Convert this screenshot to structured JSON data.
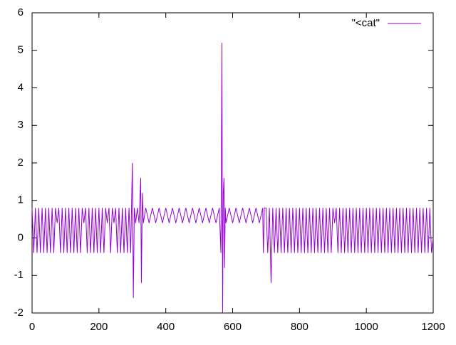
{
  "chart_data": {
    "type": "line",
    "x": [
      0,
      5,
      10,
      15,
      20,
      25,
      30,
      35,
      40,
      45,
      50,
      55,
      60,
      65,
      70,
      75,
      80,
      85,
      90,
      95,
      100,
      105,
      110,
      115,
      120,
      125,
      130,
      135,
      140,
      145,
      150,
      155,
      160,
      165,
      170,
      175,
      180,
      185,
      190,
      195,
      200,
      205,
      210,
      215,
      220,
      225,
      230,
      235,
      240,
      245,
      250,
      255,
      260,
      265,
      270,
      275,
      280,
      285,
      290,
      295,
      300,
      303,
      306,
      310,
      315,
      320,
      325,
      327,
      330,
      333,
      340,
      350,
      360,
      370,
      380,
      390,
      400,
      410,
      420,
      430,
      440,
      450,
      460,
      470,
      480,
      490,
      500,
      510,
      520,
      530,
      540,
      550,
      560,
      565,
      568,
      570,
      572,
      574,
      576,
      578,
      580,
      590,
      600,
      610,
      620,
      630,
      640,
      650,
      660,
      670,
      680,
      690,
      692,
      695,
      700,
      705,
      710,
      715,
      720,
      725,
      730,
      735,
      740,
      745,
      750,
      755,
      760,
      765,
      770,
      775,
      780,
      785,
      790,
      795,
      800,
      805,
      810,
      815,
      820,
      825,
      830,
      835,
      840,
      845,
      850,
      855,
      860,
      865,
      870,
      875,
      880,
      885,
      890,
      895,
      900,
      905,
      910,
      915,
      920,
      925,
      930,
      935,
      940,
      945,
      950,
      955,
      960,
      965,
      970,
      975,
      980,
      985,
      990,
      995,
      1000,
      1005,
      1010,
      1015,
      1020,
      1025,
      1030,
      1035,
      1040,
      1045,
      1050,
      1055,
      1060,
      1065,
      1070,
      1075,
      1080,
      1085,
      1090,
      1095,
      1100,
      1105,
      1110,
      1115,
      1120,
      1125,
      1130,
      1135,
      1140,
      1145,
      1150,
      1155,
      1160,
      1165,
      1170,
      1175,
      1180,
      1185,
      1190,
      1195,
      1200
    ],
    "series": [
      {
        "name": "\"<cat\"",
        "color": "#9400d3",
        "values": [
          0.8,
          -0.4,
          0.8,
          -0.4,
          0.8,
          -0.4,
          0.8,
          -0.4,
          0.8,
          -0.4,
          0.8,
          -0.4,
          0.8,
          -0.4,
          0.8,
          0.4,
          0.8,
          -0.4,
          0.8,
          -0.4,
          0.8,
          -0.4,
          0.8,
          -0.4,
          0.8,
          -0.4,
          0.8,
          -0.4,
          0.8,
          -0.4,
          0.8,
          0.4,
          0.8,
          -0.4,
          0.8,
          -0.4,
          0.8,
          -0.4,
          0.8,
          -0.4,
          0.8,
          -0.4,
          0.8,
          -0.4,
          0.8,
          0.4,
          0.8,
          -0.4,
          0.8,
          0.4,
          0.8,
          -0.4,
          0.8,
          -0.4,
          0.8,
          -0.4,
          0.8,
          -0.4,
          0.8,
          -0.4,
          2,
          -1.6,
          0.8,
          0.4,
          0.8,
          0.4,
          1.6,
          -1.2,
          1.2,
          0.4,
          0.8,
          0.4,
          0.8,
          0.4,
          0.8,
          0.4,
          0.8,
          0.4,
          0.8,
          0.4,
          0.8,
          0.4,
          0.8,
          0.4,
          0.8,
          0.4,
          0.8,
          0.4,
          0.8,
          0.4,
          0.8,
          0.4,
          0.8,
          -0.4,
          5.2,
          -2,
          1.2,
          1.6,
          -0.8,
          0.8,
          0.4,
          0.8,
          0.4,
          0.8,
          0.4,
          0.8,
          0.4,
          0.8,
          0.4,
          0.8,
          0.4,
          0.8,
          -0.4,
          0.8,
          0.8,
          -0.4,
          0.8,
          -1.2,
          0.8,
          -0.4,
          0.8,
          -0.4,
          0.8,
          -0.4,
          0.8,
          -0.4,
          0.8,
          -0.4,
          0.8,
          -0.4,
          0.8,
          -0.4,
          0.8,
          -0.4,
          0.8,
          -0.4,
          0.8,
          -0.4,
          0.8,
          -0.4,
          0.8,
          -0.4,
          0.8,
          -0.4,
          0.8,
          -0.4,
          0.8,
          -0.4,
          0.8,
          -0.4,
          0.8,
          -0.4,
          0.8,
          -0.4,
          0.8,
          0.4,
          0.8,
          -0.4,
          0.8,
          -0.4,
          0.8,
          -0.4,
          0.8,
          -0.4,
          0.8,
          -0.4,
          0.8,
          -0.4,
          0.8,
          -0.4,
          0.8,
          -0.4,
          0.8,
          -0.4,
          0.8,
          -0.4,
          0.8,
          -0.4,
          0.8,
          -0.4,
          0.8,
          -0.4,
          0.8,
          -0.4,
          0.8,
          -0.4,
          0.8,
          -0.4,
          0.8,
          -0.4,
          0.8,
          -0.4,
          0.8,
          -0.4,
          0.8,
          -0.4,
          0.8,
          -0.4,
          0.8,
          -0.4,
          0.8,
          -0.4,
          0.8,
          -0.4,
          0.8,
          -0.4,
          0.8,
          -0.4,
          0.8,
          -0.4,
          0.8,
          -0.4,
          0.8,
          -0.4,
          0
        ]
      }
    ],
    "xlim": [
      0,
      1200
    ],
    "xticks": [
      0,
      200,
      400,
      600,
      800,
      1000,
      1200
    ],
    "ylim": [
      -2,
      6
    ],
    "yticks": [
      -2,
      -1,
      0,
      1,
      2,
      3,
      4,
      5,
      6
    ],
    "grid": false,
    "legend": "top-right"
  }
}
